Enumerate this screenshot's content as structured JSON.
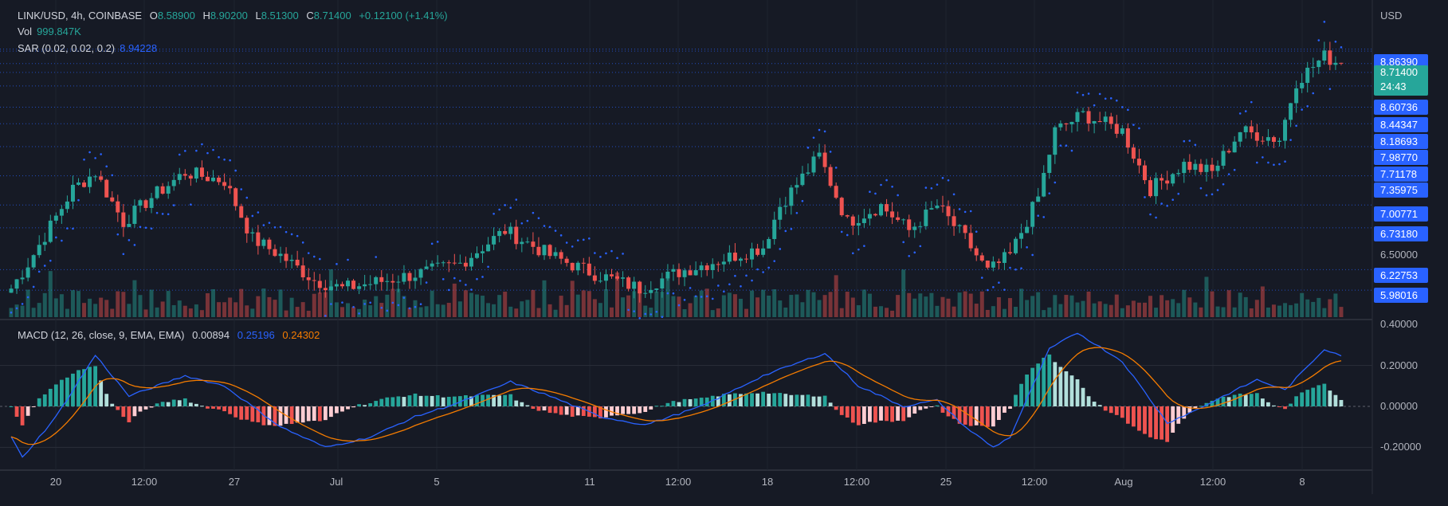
{
  "header": {
    "symbol": "LINK/USD, 4h, COINBASE",
    "o_label": "O",
    "o": "8.58900",
    "h_label": "H",
    "h": "8.90200",
    "l_label": "L",
    "l": "8.51300",
    "c_label": "C",
    "c": "8.71400",
    "change": "+0.12100 (+1.41%)",
    "vol_label": "Vol",
    "vol": "999.847K",
    "sar_label": "SAR (0.02, 0.02, 0.2)",
    "sar": "8.94228"
  },
  "axis": {
    "currency": "USD",
    "price_labels": [
      "8.86390",
      "8.60736",
      "8.44347",
      "8.18693",
      "7.98770",
      "7.71178",
      "7.35975",
      "7.00771",
      "6.73180",
      "6.50000",
      "6.22753",
      "5.98016"
    ],
    "current_price": "8.71400",
    "countdown": "24:43"
  },
  "macd": {
    "label": "MACD (12, 26, close, 9, EMA, EMA)",
    "hist": "0.00894",
    "macd": "0.25196",
    "signal": "0.24302",
    "ticks": [
      "0.40000",
      "0.20000",
      "0.00000",
      "-0.20000"
    ]
  },
  "time_labels": [
    "20",
    "12:00",
    "27",
    "Jul",
    "5",
    "11",
    "12:00",
    "18",
    "12:00",
    "25",
    "12:00",
    "Aug",
    "12:00",
    "8"
  ],
  "colors": {
    "up": "#26a69a",
    "down": "#ef5350",
    "sar": "#2962ff",
    "macd": "#2962ff",
    "signal": "#f57c00",
    "bg": "#161a25"
  },
  "chart_data": {
    "type": "candlestick",
    "title": "LINK/USD, 4h, COINBASE",
    "ylabel": "USD",
    "ylim": [
      5.8,
      9.1
    ],
    "close_path": [
      [
        0,
        6.0
      ],
      [
        3,
        6.3
      ],
      [
        11,
        7.2
      ],
      [
        15,
        7.4
      ],
      [
        20,
        6.8
      ],
      [
        25,
        7.1
      ],
      [
        31,
        7.4
      ],
      [
        38,
        7.3
      ],
      [
        43,
        6.6
      ],
      [
        48,
        6.4
      ],
      [
        54,
        6.1
      ],
      [
        59,
        6.0
      ],
      [
        67,
        6.1
      ],
      [
        74,
        6.2
      ],
      [
        80,
        6.3
      ],
      [
        88,
        6.7
      ],
      [
        96,
        6.4
      ],
      [
        103,
        6.2
      ],
      [
        112,
        6.0
      ],
      [
        119,
        6.2
      ],
      [
        129,
        6.4
      ],
      [
        134,
        6.5
      ],
      [
        137,
        7.0
      ],
      [
        144,
        7.6
      ],
      [
        149,
        6.8
      ],
      [
        155,
        7.0
      ],
      [
        160,
        6.7
      ],
      [
        165,
        7.0
      ],
      [
        170,
        6.6
      ],
      [
        174,
        6.2
      ],
      [
        178,
        6.4
      ],
      [
        183,
        7.1
      ],
      [
        186,
        7.9
      ],
      [
        191,
        8.1
      ],
      [
        198,
        7.9
      ],
      [
        203,
        7.2
      ],
      [
        209,
        7.5
      ],
      [
        214,
        7.4
      ],
      [
        219,
        7.9
      ],
      [
        226,
        7.8
      ],
      [
        229,
        8.5
      ],
      [
        234,
        8.8
      ],
      [
        237,
        8.71
      ]
    ],
    "macd_path": [
      [
        0,
        -0.15
      ],
      [
        2,
        -0.25
      ],
      [
        8,
        -0.05
      ],
      [
        15,
        0.25
      ],
      [
        21,
        0.05
      ],
      [
        31,
        0.15
      ],
      [
        38,
        0.1
      ],
      [
        48,
        -0.1
      ],
      [
        56,
        -0.2
      ],
      [
        64,
        -0.15
      ],
      [
        72,
        -0.05
      ],
      [
        80,
        0.02
      ],
      [
        89,
        0.12
      ],
      [
        96,
        0.05
      ],
      [
        105,
        -0.05
      ],
      [
        113,
        -0.09
      ],
      [
        123,
        0.0
      ],
      [
        134,
        0.15
      ],
      [
        145,
        0.26
      ],
      [
        151,
        0.1
      ],
      [
        159,
        0.0
      ],
      [
        165,
        0.03
      ],
      [
        170,
        -0.1
      ],
      [
        175,
        -0.2
      ],
      [
        178,
        -0.15
      ],
      [
        185,
        0.28
      ],
      [
        190,
        0.36
      ],
      [
        198,
        0.22
      ],
      [
        206,
        -0.08
      ],
      [
        211,
        -0.02
      ],
      [
        216,
        0.05
      ],
      [
        222,
        0.13
      ],
      [
        227,
        0.08
      ],
      [
        234,
        0.28
      ],
      [
        237,
        0.25
      ]
    ],
    "macd_ylim": [
      -0.3,
      0.45
    ]
  }
}
